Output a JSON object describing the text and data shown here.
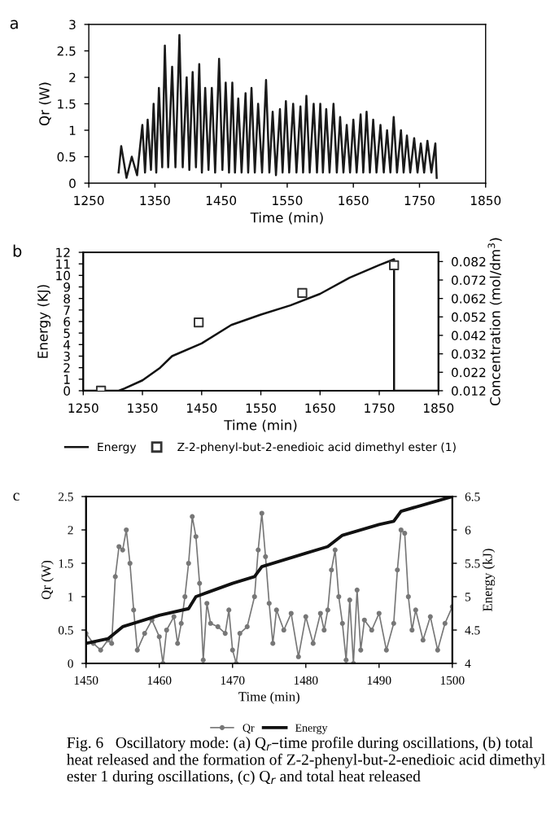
{
  "chart_data": [
    {
      "type": "line",
      "title": "a",
      "xlabel": "Time (min)",
      "ylabel": "Qr (W)",
      "xlim": [
        1250,
        1850
      ],
      "xticks": [
        1250,
        1350,
        1450,
        1550,
        1650,
        1750,
        1850
      ],
      "ylim": [
        0,
        3
      ],
      "yticks": [
        0,
        0.5,
        1,
        1.5,
        2,
        2.5,
        3
      ],
      "series": [
        {
          "color": "#1a1a1a",
          "x": [
            1295,
            1299,
            1307,
            1315,
            1323,
            1331,
            1335,
            1339,
            1344,
            1348,
            1352,
            1356,
            1361,
            1365,
            1370,
            1376,
            1381,
            1387,
            1392,
            1398,
            1402,
            1407,
            1412,
            1417,
            1421,
            1426,
            1431,
            1436,
            1441,
            1447,
            1452,
            1457,
            1462,
            1467,
            1471,
            1476,
            1481,
            1487,
            1491,
            1496,
            1501,
            1506,
            1512,
            1518,
            1523,
            1528,
            1533,
            1539,
            1543,
            1548,
            1553,
            1559,
            1564,
            1570,
            1574,
            1579,
            1584,
            1590,
            1595,
            1600,
            1604,
            1609,
            1614,
            1620,
            1625,
            1630,
            1635,
            1640,
            1645,
            1650,
            1655,
            1661,
            1665,
            1670,
            1675,
            1680,
            1685,
            1691,
            1696,
            1701,
            1706,
            1711,
            1716,
            1722,
            1726,
            1731,
            1736,
            1742,
            1747,
            1752,
            1757,
            1762,
            1768,
            1774,
            1776
          ],
          "values": [
            0.2,
            0.7,
            0.1,
            0.5,
            0.15,
            1.1,
            0.2,
            1.2,
            0.25,
            1.5,
            0.2,
            1.8,
            0.3,
            2.6,
            0.3,
            2.2,
            0.3,
            2.8,
            0.3,
            2.0,
            0.25,
            2.1,
            0.3,
            2.25,
            0.2,
            1.8,
            0.25,
            1.8,
            0.2,
            2.35,
            0.25,
            1.9,
            0.2,
            1.9,
            0.2,
            1.6,
            0.2,
            1.7,
            0.2,
            1.8,
            0.2,
            1.5,
            0.2,
            1.95,
            0.2,
            1.35,
            0.15,
            1.4,
            0.2,
            1.55,
            0.2,
            1.5,
            0.2,
            1.45,
            0.2,
            1.65,
            0.2,
            1.5,
            0.2,
            1.5,
            0.2,
            1.4,
            0.2,
            1.5,
            0.2,
            1.25,
            0.2,
            1.1,
            0.2,
            1.2,
            0.2,
            1.3,
            0.2,
            1.35,
            0.2,
            1.2,
            0.2,
            1.1,
            0.2,
            1.0,
            0.2,
            1.25,
            0.2,
            1.0,
            0.2,
            0.9,
            0.2,
            0.85,
            0.2,
            0.75,
            0.2,
            0.8,
            0.2,
            0.75,
            0.1
          ]
        }
      ]
    },
    {
      "type": "line",
      "title": "b",
      "xlabel": "Time (min)",
      "ylabel": "Energy (KJ)",
      "y2label": "Concentration (mol/dm$^{3}$)",
      "xlim": [
        1250,
        1850
      ],
      "xticks": [
        1250,
        1350,
        1450,
        1550,
        1650,
        1750,
        1850
      ],
      "ylim": [
        0,
        12
      ],
      "yticks": [
        0,
        1,
        2,
        3,
        4,
        5,
        6,
        7,
        8,
        9,
        10,
        11,
        12
      ],
      "y2lim": [
        0.012,
        0.087
      ],
      "y2ticks": [
        0.012,
        0.022,
        0.032,
        0.042,
        0.052,
        0.062,
        0.072,
        0.082
      ],
      "legend": "bottom",
      "series": [
        {
          "name": "Energy",
          "color": "#111111",
          "x": [
            1250,
            1310,
            1320,
            1350,
            1380,
            1400,
            1450,
            1500,
            1550,
            1600,
            1650,
            1700,
            1750,
            1775,
            1775,
            1850
          ],
          "values": [
            0,
            0,
            0.2,
            0.9,
            2.0,
            3.0,
            4.1,
            5.7,
            6.6,
            7.4,
            8.4,
            9.8,
            10.9,
            11.4,
            0,
            0
          ]
        },
        {
          "name": "Z-2-phenyl-but-2-enedioic acid dimethyl ester (1)",
          "type": "scatter",
          "axis": "y2",
          "marker": "square",
          "color": "#333333",
          "x": [
            1280,
            1445,
            1620,
            1775
          ],
          "values": [
            0.012,
            0.049,
            0.065,
            0.08
          ]
        }
      ]
    },
    {
      "type": "line",
      "title": "c",
      "xlabel": "Time (min)",
      "ylabel": "Qr (W)",
      "y2label": "Energy (kJ)",
      "xlim": [
        1450,
        1500
      ],
      "xticks": [
        1450,
        1460,
        1470,
        1480,
        1490,
        1500
      ],
      "ylim": [
        0,
        2.5
      ],
      "yticks": [
        0,
        0.5,
        1,
        1.5,
        2,
        2.5
      ],
      "y2lim": [
        4,
        6.5
      ],
      "y2ticks": [
        4,
        4.5,
        5,
        5.5,
        6,
        6.5
      ],
      "legend": "bottom",
      "annotations": [
        "Fig. 6   Oscillatory mode: (a) Q$_{r}$–time profile during oscillations, (b) total heat released and the formation of Z-2-phenyl-but-2-enedioic acid dimethyl ester 1 during oscillations, (c) Q$_{r}$ and total heat released"
      ],
      "series": [
        {
          "name": "Qr",
          "color": "#777777",
          "marker": "circle",
          "x": [
            1450,
            1451,
            1452,
            1453,
            1453.5,
            1454,
            1454.5,
            1455,
            1455.5,
            1456,
            1456.5,
            1457,
            1458,
            1459,
            1460,
            1460.5,
            1461,
            1462,
            1462.5,
            1463,
            1463.5,
            1464,
            1464.5,
            1465,
            1465.5,
            1466,
            1466.5,
            1467,
            1468,
            1469,
            1469.5,
            1470,
            1470.5,
            1471,
            1472,
            1473,
            1473.5,
            1474,
            1474.5,
            1475,
            1475.5,
            1476,
            1477,
            1478,
            1479,
            1480,
            1481,
            1482,
            1482.5,
            1483,
            1483.5,
            1484,
            1484.5,
            1485,
            1485.5,
            1486,
            1486.5,
            1487,
            1487.5,
            1488,
            1489,
            1490,
            1491,
            1492,
            1492.5,
            1493,
            1493.5,
            1494,
            1494.5,
            1495,
            1496,
            1497,
            1498,
            1499,
            1500
          ],
          "values": [
            0.45,
            0.3,
            0.2,
            0.35,
            0.3,
            1.3,
            1.75,
            1.7,
            2.0,
            1.5,
            0.8,
            0.2,
            0.45,
            0.65,
            0.4,
            0.0,
            0.5,
            0.7,
            0.3,
            0.6,
            1.0,
            1.5,
            2.2,
            1.9,
            1.2,
            0.05,
            0.9,
            0.6,
            0.55,
            0.45,
            0.8,
            0.2,
            0.0,
            0.45,
            0.55,
            1.0,
            1.7,
            2.25,
            1.6,
            0.9,
            0.3,
            0.8,
            0.5,
            0.75,
            0.1,
            0.7,
            0.3,
            0.75,
            0.5,
            0.8,
            1.4,
            1.7,
            1.0,
            0.6,
            0.05,
            0.95,
            0.0,
            1.1,
            0.2,
            0.65,
            0.5,
            0.75,
            0.2,
            0.6,
            1.4,
            2.0,
            1.95,
            1.0,
            0.5,
            0.8,
            0.35,
            0.7,
            0.2,
            0.6,
            0.85
          ]
        },
        {
          "name": "Energy",
          "axis": "y2",
          "color": "#111111",
          "x": [
            1450,
            1453,
            1455,
            1460,
            1464,
            1465,
            1470,
            1473,
            1474,
            1480,
            1483,
            1485,
            1490,
            1492,
            1493,
            1500
          ],
          "values": [
            4.3,
            4.37,
            4.55,
            4.72,
            4.82,
            5.0,
            5.2,
            5.3,
            5.45,
            5.65,
            5.75,
            5.92,
            6.08,
            6.13,
            6.28,
            6.5
          ]
        }
      ]
    }
  ]
}
